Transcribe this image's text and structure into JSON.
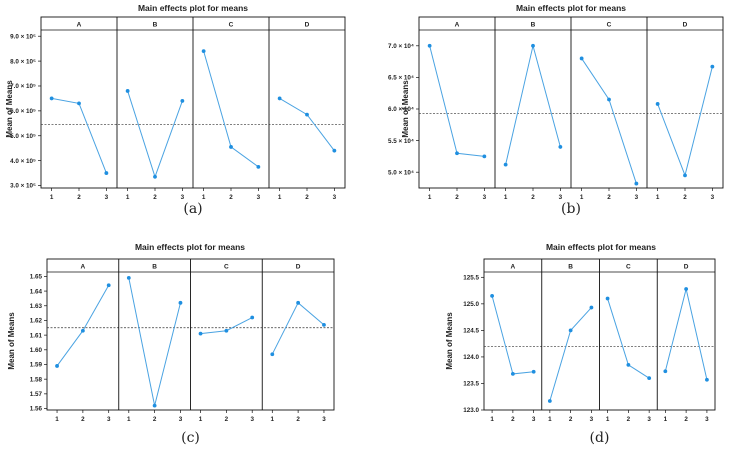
{
  "figure": {
    "panels": [
      {
        "caption": "(a)",
        "chart_data": {
          "type": "line",
          "title": "Main effects plot for means",
          "ylabel": "Mean of Means",
          "factors": [
            "A",
            "B",
            "C",
            "D"
          ],
          "levels": [
            "1",
            "2",
            "3"
          ],
          "series": [
            {
              "name": "A",
              "values": [
                6.5,
                6.3,
                3.5
              ]
            },
            {
              "name": "B",
              "values": [
                6.8,
                3.35,
                6.4
              ]
            },
            {
              "name": "C",
              "values": [
                8.4,
                4.55,
                3.75
              ]
            },
            {
              "name": "D",
              "values": [
                6.5,
                5.85,
                4.4
              ]
            }
          ],
          "mean": 5.45,
          "ylim": [
            2.9,
            9.25
          ],
          "yticks": [
            3.0,
            4.0,
            5.0,
            6.0,
            7.0,
            8.0,
            9.0
          ],
          "ytick_labels": [
            "3.0 × 10⁵",
            "4.0 × 10⁵",
            "5.0 × 10⁵",
            "6.0 × 10⁵",
            "7.0 × 10⁵",
            "8.0 × 10⁵",
            "9.0 × 10⁵"
          ]
        }
      },
      {
        "caption": "(b)",
        "chart_data": {
          "type": "line",
          "title": "Main effects plot for means",
          "ylabel": "Mean of Means",
          "factors": [
            "A",
            "B",
            "C",
            "D"
          ],
          "levels": [
            "1",
            "2",
            "3"
          ],
          "series": [
            {
              "name": "A",
              "values": [
                7.0,
                5.3,
                5.25
              ]
            },
            {
              "name": "B",
              "values": [
                5.12,
                7.0,
                5.4
              ]
            },
            {
              "name": "C",
              "values": [
                6.8,
                6.15,
                4.82
              ]
            },
            {
              "name": "D",
              "values": [
                6.08,
                4.95,
                6.67
              ]
            }
          ],
          "mean": 5.93,
          "ylim": [
            4.75,
            7.25
          ],
          "yticks": [
            5.0,
            5.5,
            6.0,
            6.5,
            7.0
          ],
          "ytick_labels": [
            "5.0 × 10⁴",
            "5.5 × 10⁴",
            "6.0 × 10⁴",
            "6.5 × 10⁴",
            "7.0 × 10⁴"
          ]
        }
      },
      {
        "caption": "(c)",
        "chart_data": {
          "type": "line",
          "title": "Main effects plot for means",
          "ylabel": "Mean of Means",
          "factors": [
            "A",
            "B",
            "C",
            "D"
          ],
          "levels": [
            "1",
            "2",
            "3"
          ],
          "series": [
            {
              "name": "A",
              "values": [
                1.589,
                1.613,
                1.644
              ]
            },
            {
              "name": "B",
              "values": [
                1.649,
                1.562,
                1.632
              ]
            },
            {
              "name": "C",
              "values": [
                1.611,
                1.613,
                1.622
              ]
            },
            {
              "name": "D",
              "values": [
                1.597,
                1.632,
                1.617
              ]
            }
          ],
          "mean": 1.615,
          "ylim": [
            1.559,
            1.653
          ],
          "yticks": [
            1.56,
            1.57,
            1.58,
            1.59,
            1.6,
            1.61,
            1.62,
            1.63,
            1.64,
            1.65
          ],
          "ytick_labels": [
            "1.56",
            "1.57",
            "1.58",
            "1.59",
            "1.60",
            "1.61",
            "1.62",
            "1.63",
            "1.64",
            "1.65"
          ]
        }
      },
      {
        "caption": "(d)",
        "chart_data": {
          "type": "line",
          "title": "Main effects plot for means",
          "ylabel": "Mean of Means",
          "factors": [
            "A",
            "B",
            "C",
            "D"
          ],
          "levels": [
            "1",
            "2",
            "3"
          ],
          "series": [
            {
              "name": "A",
              "values": [
                125.15,
                123.68,
                123.72
              ]
            },
            {
              "name": "B",
              "values": [
                123.17,
                124.5,
                124.93
              ]
            },
            {
              "name": "C",
              "values": [
                125.1,
                123.85,
                123.6
              ]
            },
            {
              "name": "D",
              "values": [
                123.73,
                125.28,
                123.57
              ]
            }
          ],
          "mean": 124.2,
          "ylim": [
            123.0,
            125.6
          ],
          "yticks": [
            123.0,
            123.5,
            124.0,
            124.5,
            125.0,
            125.5
          ],
          "ytick_labels": [
            "123.0",
            "123.5",
            "124.0",
            "124.5",
            "125.0",
            "125.5"
          ]
        }
      }
    ],
    "colors": {
      "line": "#4aa3e2",
      "point": "#1f8fe0",
      "mean_line": "#333333",
      "frame": "#111111"
    }
  }
}
